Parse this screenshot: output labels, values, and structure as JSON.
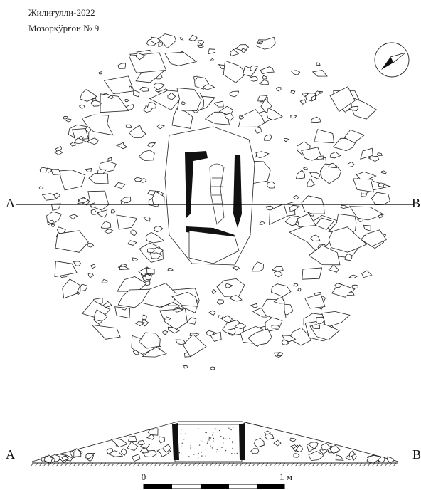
{
  "header": {
    "site": "Жилиғулли-2022",
    "object": "Мозорқўрғон № 9"
  },
  "plan": {
    "section_left": "A",
    "section_right": "B"
  },
  "section": {
    "left": "A",
    "right": "B"
  },
  "scale": {
    "start": "0",
    "end": "1 м"
  }
}
